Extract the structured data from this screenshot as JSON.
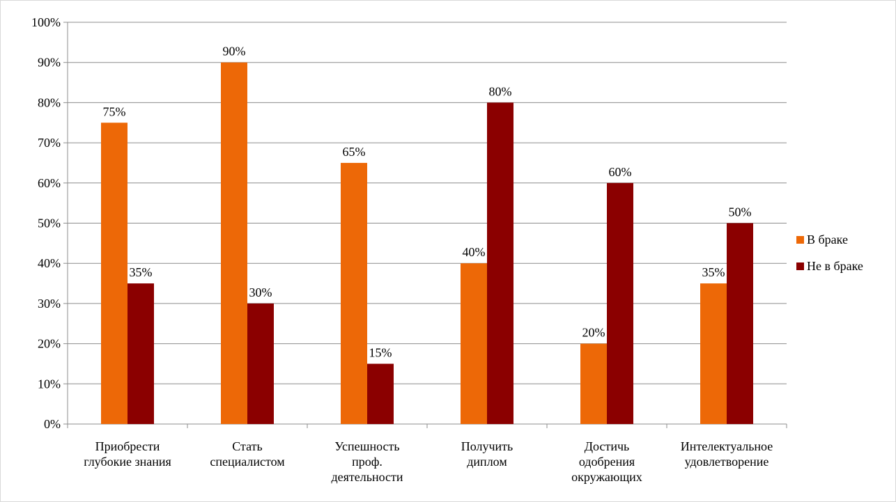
{
  "chart_data": {
    "type": "bar",
    "categories": [
      [
        "Приобрести",
        "глубокие знания"
      ],
      [
        "Стать",
        "специалистом"
      ],
      [
        "Успешность",
        "проф.",
        "деятельности"
      ],
      [
        "Получить",
        "диплом"
      ],
      [
        "Достичь",
        "одобрения",
        "окружающих"
      ],
      [
        "Интелектуальное",
        "удовлетворение"
      ]
    ],
    "series": [
      {
        "name": "В браке",
        "color": "#ed6807",
        "values": [
          75,
          90,
          65,
          40,
          20,
          35
        ],
        "labels": [
          "75%",
          "90%",
          "65%",
          "40%",
          "20%",
          "35%"
        ]
      },
      {
        "name": "Не в браке",
        "color": "#8b0000",
        "values": [
          35,
          30,
          15,
          80,
          60,
          50
        ],
        "labels": [
          "35%",
          "30%",
          "15%",
          "80%",
          "60%",
          "50%"
        ]
      }
    ],
    "ylim": [
      0,
      100
    ],
    "yticks": [
      "0%",
      "10%",
      "20%",
      "30%",
      "40%",
      "50%",
      "60%",
      "70%",
      "80%",
      "90%",
      "100%"
    ],
    "grid": true,
    "legend_position": "right",
    "title": "",
    "xlabel": "",
    "ylabel": ""
  }
}
